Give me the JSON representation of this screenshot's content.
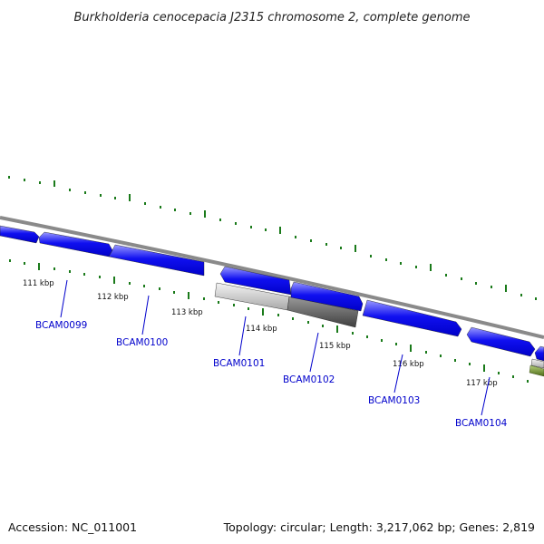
{
  "title": "Burkholderia cenocepacia J2315 chromosome 2, complete genome",
  "footer": {
    "accession": "Accession: NC_011001",
    "summary": "Topology: circular; Length: 3,217,062 bp; Genes: 2,819"
  },
  "colors": {
    "gene_forward": "#0000ee",
    "gene_light": "#bbbbbb",
    "gene_dark": "#555555",
    "tick": "#1a7a1a",
    "backbone": "#8a8a8a",
    "feature_green": "#6b8e23",
    "label": "#0000cc"
  },
  "kbp_labels": [
    {
      "text": "111 kbp"
    },
    {
      "text": "112 kbp"
    },
    {
      "text": "113 kbp"
    },
    {
      "text": "114 kbp"
    },
    {
      "text": "115 kbp"
    },
    {
      "text": "116 kbp"
    },
    {
      "text": "117 kbp"
    }
  ],
  "gene_labels": [
    {
      "text": "BCAM0099"
    },
    {
      "text": "BCAM0100"
    },
    {
      "text": "BCAM0101"
    },
    {
      "text": "BCAM0102"
    },
    {
      "text": "BCAM0103"
    },
    {
      "text": "BCAM0104"
    }
  ]
}
